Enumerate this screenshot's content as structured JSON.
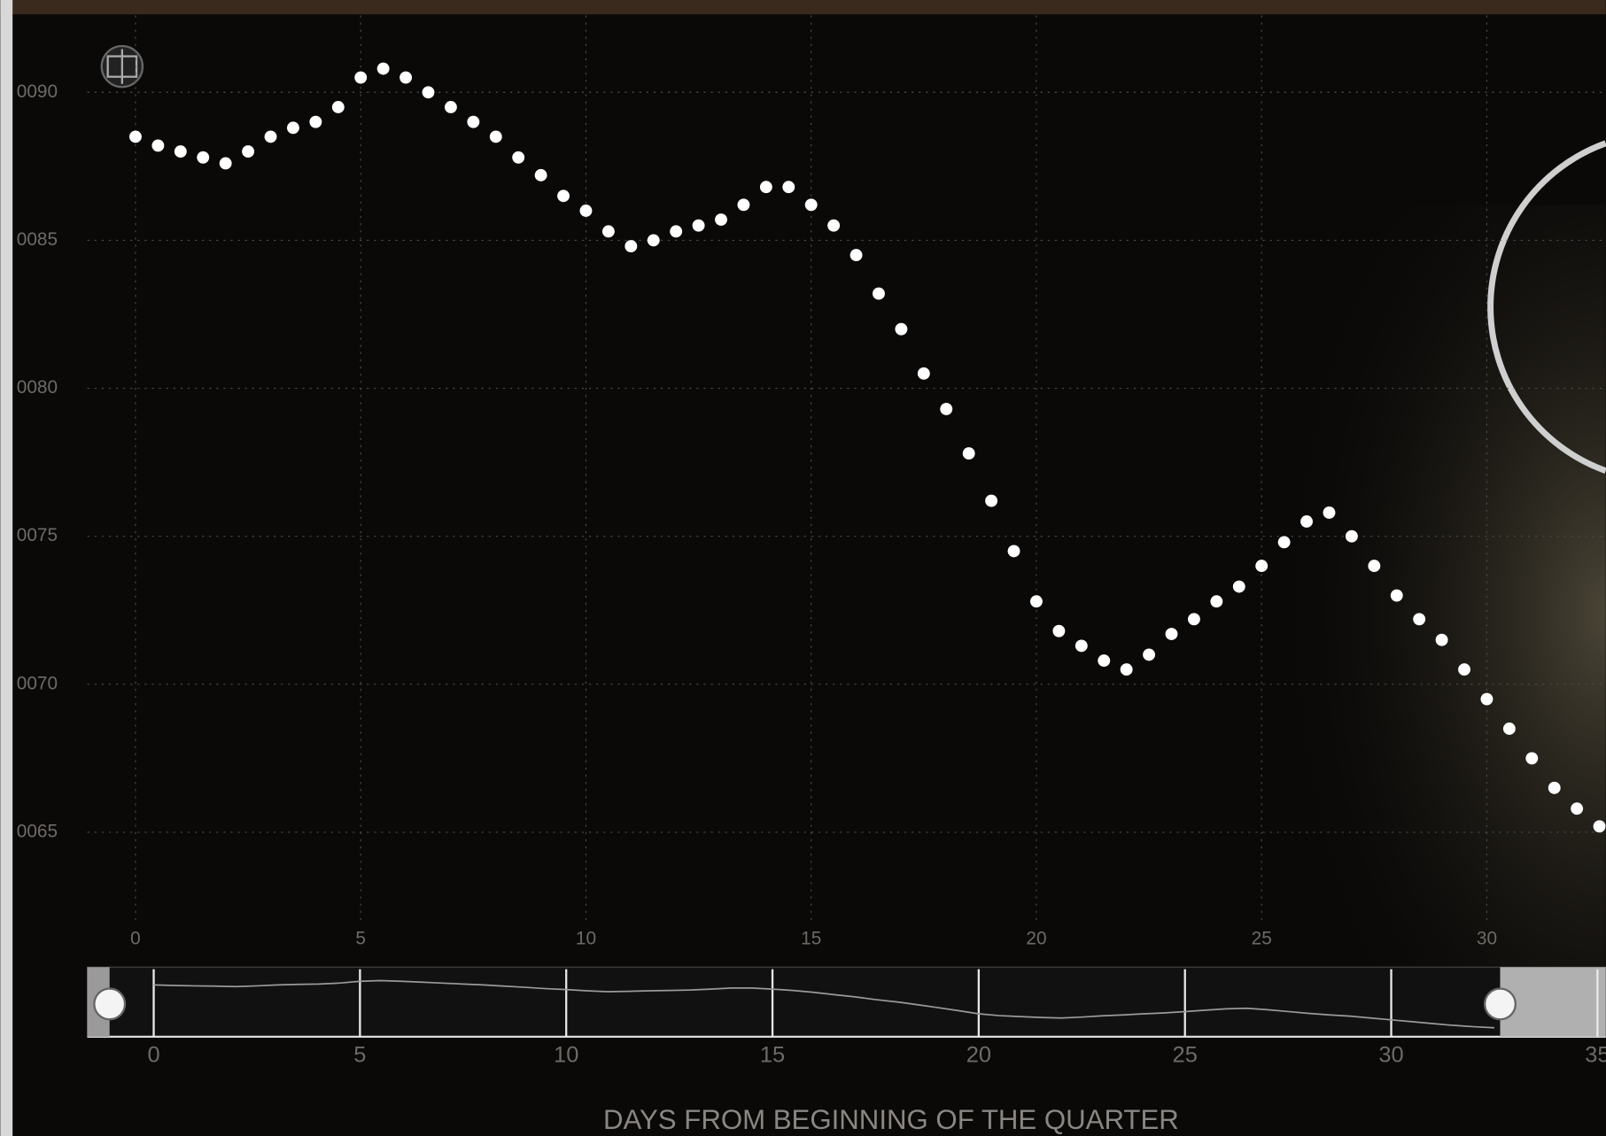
{
  "chart_data": {
    "type": "scatter",
    "x_label": "DAYS FROM BEGINNING OF THE QUARTER",
    "color": "#ffffff",
    "x": [
      0,
      0.5,
      1,
      1.5,
      2,
      2.5,
      3,
      3.5,
      4,
      4.5,
      5,
      5.5,
      6,
      6.5,
      7,
      7.5,
      8,
      8.5,
      9,
      9.5,
      10,
      10.5,
      11,
      11.5,
      12,
      12.5,
      13,
      13.5,
      14,
      14.5,
      15,
      15.5,
      16,
      16.5,
      17,
      17.5,
      18,
      18.5,
      19,
      19.5,
      20,
      20.5,
      21,
      21.5,
      22,
      22.5,
      23,
      23.5,
      24,
      24.5,
      25,
      25.5,
      26,
      26.5,
      27,
      27.5,
      28,
      28.5,
      29,
      29.5,
      30,
      30.5,
      31,
      31.5,
      32,
      32.5
    ],
    "values": [
      1.00885,
      1.00882,
      1.0088,
      1.00878,
      1.00876,
      1.0088,
      1.00885,
      1.00888,
      1.0089,
      1.00895,
      1.00905,
      1.00908,
      1.00905,
      1.009,
      1.00895,
      1.0089,
      1.00885,
      1.00878,
      1.00872,
      1.00865,
      1.0086,
      1.00853,
      1.00848,
      1.0085,
      1.00853,
      1.00855,
      1.00857,
      1.00862,
      1.00868,
      1.00868,
      1.00862,
      1.00855,
      1.00845,
      1.00832,
      1.0082,
      1.00805,
      1.00793,
      1.00778,
      1.00762,
      1.00745,
      1.00728,
      1.00718,
      1.00713,
      1.00708,
      1.00705,
      1.0071,
      1.00717,
      1.00722,
      1.00728,
      1.00733,
      1.0074,
      1.00748,
      1.00755,
      1.00758,
      1.0075,
      1.0074,
      1.0073,
      1.00722,
      1.00715,
      1.00705,
      1.00695,
      1.00685,
      1.00675,
      1.00665,
      1.00658,
      1.00652
    ],
    "xlim": [
      -1.07,
      32.64
    ],
    "xticks": [
      0,
      5,
      10,
      15,
      20,
      25,
      30
    ],
    "ylim": [
      1.0062,
      1.00926
    ],
    "yticks": [
      {
        "value": 1.0065,
        "label": "0065"
      },
      {
        "value": 1.007,
        "label": "0070"
      },
      {
        "value": 1.0075,
        "label": "0075"
      },
      {
        "value": 1.008,
        "label": "0080"
      },
      {
        "value": 1.0085,
        "label": "0085"
      },
      {
        "value": 1.009,
        "label": "0090"
      }
    ],
    "grid": true,
    "overview_xlim": [
      -1.61,
      35.2
    ],
    "overview_xticks": [
      0,
      5,
      10,
      15,
      20,
      25,
      30,
      35
    ]
  }
}
